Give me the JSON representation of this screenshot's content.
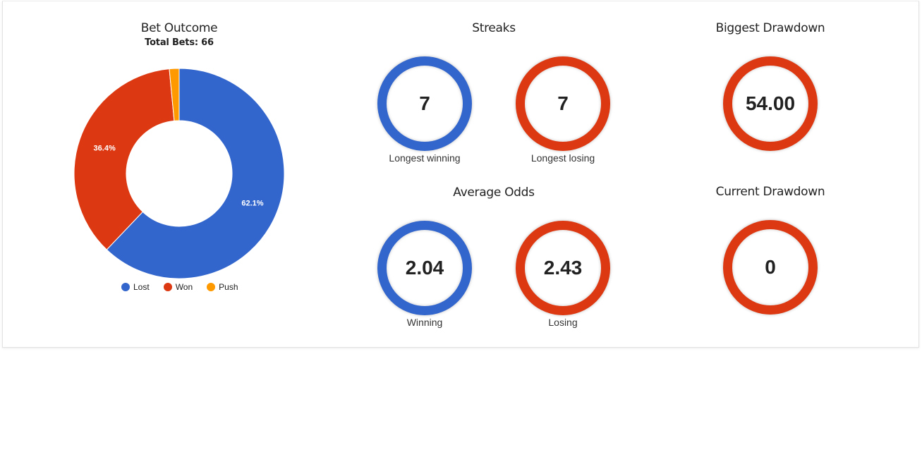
{
  "bet_outcome": {
    "title": "Bet Outcome",
    "subtitle": "Total Bets: 66"
  },
  "chart_data": {
    "type": "pie",
    "donut": true,
    "categories": [
      "Lost",
      "Won",
      "Push"
    ],
    "values": [
      62.1,
      36.4,
      1.5
    ],
    "labels": [
      "62.1%",
      "36.4%",
      ""
    ],
    "colors": [
      "#3366cc",
      "#dc3912",
      "#ff9900"
    ],
    "legend": "bottom"
  },
  "streaks": {
    "title": "Streaks",
    "winning": {
      "value": "7",
      "caption": "Longest winning",
      "color": "#3366cc"
    },
    "losing": {
      "value": "7",
      "caption": "Longest losing",
      "color": "#dc3912"
    }
  },
  "average_odds": {
    "title": "Average Odds",
    "winning": {
      "value": "2.04",
      "caption": "Winning",
      "color": "#3366cc"
    },
    "losing": {
      "value": "2.43",
      "caption": "Losing",
      "color": "#dc3912"
    }
  },
  "biggest_drawdown": {
    "title": "Biggest Drawdown",
    "value": "54.00",
    "color": "#dc3912"
  },
  "current_drawdown": {
    "title": "Current Drawdown",
    "value": "0",
    "color": "#dc3912"
  }
}
